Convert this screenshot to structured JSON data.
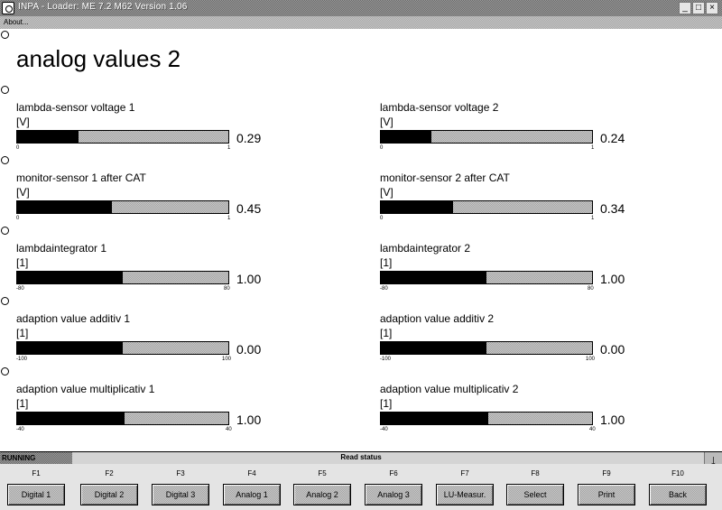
{
  "window": {
    "title": "INPA - Loader:  ME 7.2 M62 Version 1.06",
    "min_glyph": "_",
    "max_glyph": "□",
    "close_glyph": "×"
  },
  "menu": {
    "about": "About..."
  },
  "page": {
    "title": "analog values 2"
  },
  "gauges": [
    {
      "label": "lambda-sensor voltage 1",
      "unit": "[V]",
      "min": "0",
      "max": "1",
      "value": "0.29",
      "fill": 0.29
    },
    {
      "label": "lambda-sensor voltage 2",
      "unit": "[V]",
      "min": "0",
      "max": "1",
      "value": "0.24",
      "fill": 0.24
    },
    {
      "label": "monitor-sensor 1   after CAT",
      "unit": "[V]",
      "min": "0",
      "max": "1",
      "value": "0.45",
      "fill": 0.45
    },
    {
      "label": "monitor-sensor 2   after CAT",
      "unit": "[V]",
      "min": "0",
      "max": "1",
      "value": "0.34",
      "fill": 0.34
    },
    {
      "label": "lambdaintegrator 1",
      "unit": "[1]",
      "min": "-80",
      "max": "80",
      "value": "1.00",
      "fill": 0.5
    },
    {
      "label": "lambdaintegrator 2",
      "unit": "[1]",
      "min": "-80",
      "max": "80",
      "value": "1.00",
      "fill": 0.5
    },
    {
      "label": "adaption value additiv 1",
      "unit": "[1]",
      "min": "-100",
      "max": "100",
      "value": "0.00",
      "fill": 0.5
    },
    {
      "label": "adaption value additiv 2",
      "unit": "[1]",
      "min": "-100",
      "max": "100",
      "value": "0.00",
      "fill": 0.5
    },
    {
      "label": "adaption value multiplicativ 1",
      "unit": "[1]",
      "min": "-40",
      "max": "40",
      "value": "1.00",
      "fill": 0.51
    },
    {
      "label": "adaption value multiplicativ 2",
      "unit": "[1]",
      "min": "-40",
      "max": "40",
      "value": "1.00",
      "fill": 0.51
    }
  ],
  "status": {
    "running": "RUNNING",
    "read": "Read status",
    "arrow_glyph": "↓"
  },
  "fkeys": [
    {
      "key": "F1",
      "label": "Digital 1"
    },
    {
      "key": "F2",
      "label": "Digital 2"
    },
    {
      "key": "F3",
      "label": "Digital 3"
    },
    {
      "key": "F4",
      "label": "Analog 1"
    },
    {
      "key": "F5",
      "label": "Analog 2"
    },
    {
      "key": "F6",
      "label": "Analog 3"
    },
    {
      "key": "F7",
      "label": "LU-Measur."
    },
    {
      "key": "F8",
      "label": "Select"
    },
    {
      "key": "F9",
      "label": "Print"
    },
    {
      "key": "F10",
      "label": "Back"
    }
  ]
}
